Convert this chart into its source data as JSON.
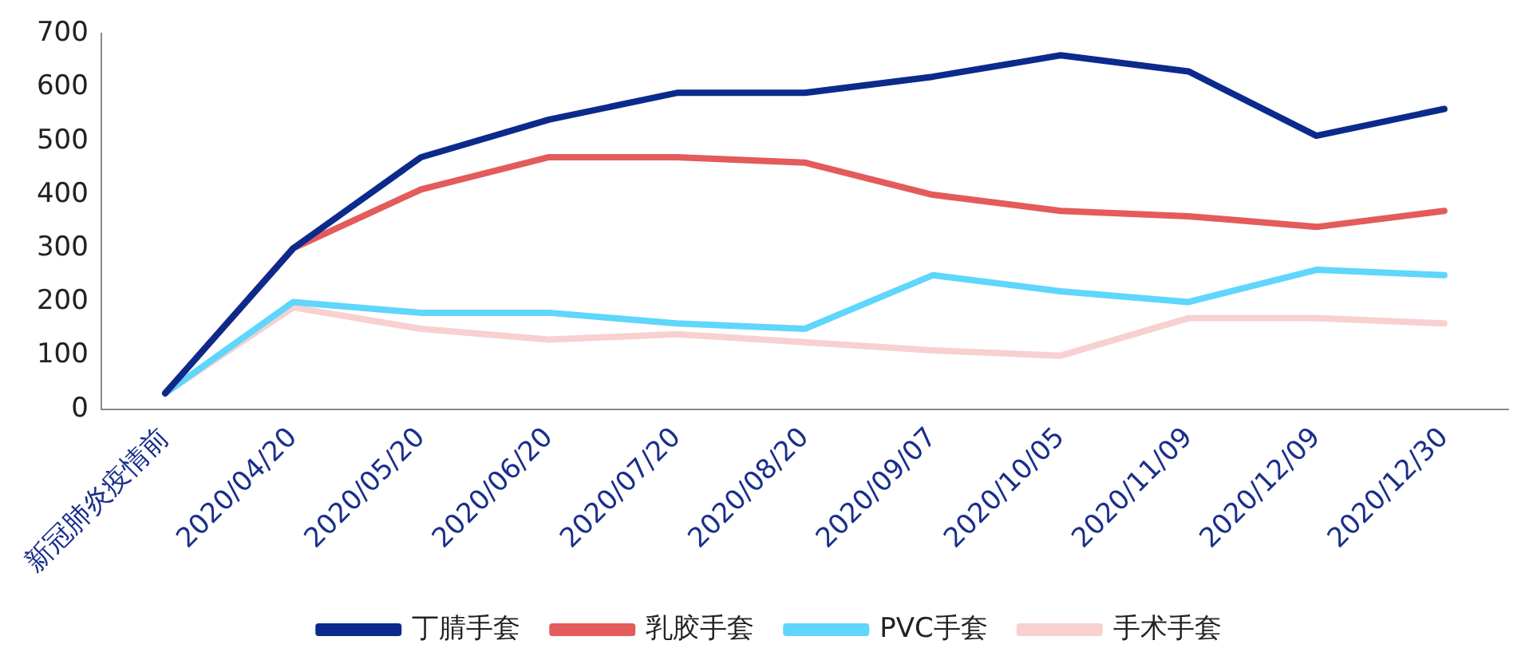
{
  "chart_data": {
    "type": "line",
    "categories": [
      "新冠肺炎疫情前",
      "2020/04/20",
      "2020/05/20",
      "2020/06/20",
      "2020/07/20",
      "2020/08/20",
      "2020/09/07",
      "2020/10/05",
      "2020/11/09",
      "2020/12/09",
      "2020/12/30"
    ],
    "series": [
      {
        "name": "丁腈手套",
        "color": "#0b2a8c",
        "values": [
          30,
          300,
          470,
          540,
          590,
          590,
          620,
          660,
          630,
          510,
          560
        ]
      },
      {
        "name": "乳胶手套",
        "color": "#e35b5b",
        "values": [
          30,
          300,
          410,
          470,
          470,
          460,
          400,
          370,
          360,
          340,
          370
        ]
      },
      {
        "name": "PVC手套",
        "color": "#5fd6fb",
        "values": [
          30,
          200,
          180,
          180,
          160,
          150,
          250,
          220,
          200,
          260,
          250
        ]
      },
      {
        "name": "手术手套",
        "color": "#f8d0d0",
        "values": [
          30,
          190,
          150,
          130,
          140,
          125,
          110,
          100,
          170,
          170,
          160
        ]
      }
    ],
    "ylim": [
      0,
      700
    ],
    "yticks": [
      0,
      100,
      200,
      300,
      400,
      500,
      600,
      700
    ],
    "grid": false,
    "legend": "bottom",
    "marker": "none",
    "line_style": "solid"
  }
}
